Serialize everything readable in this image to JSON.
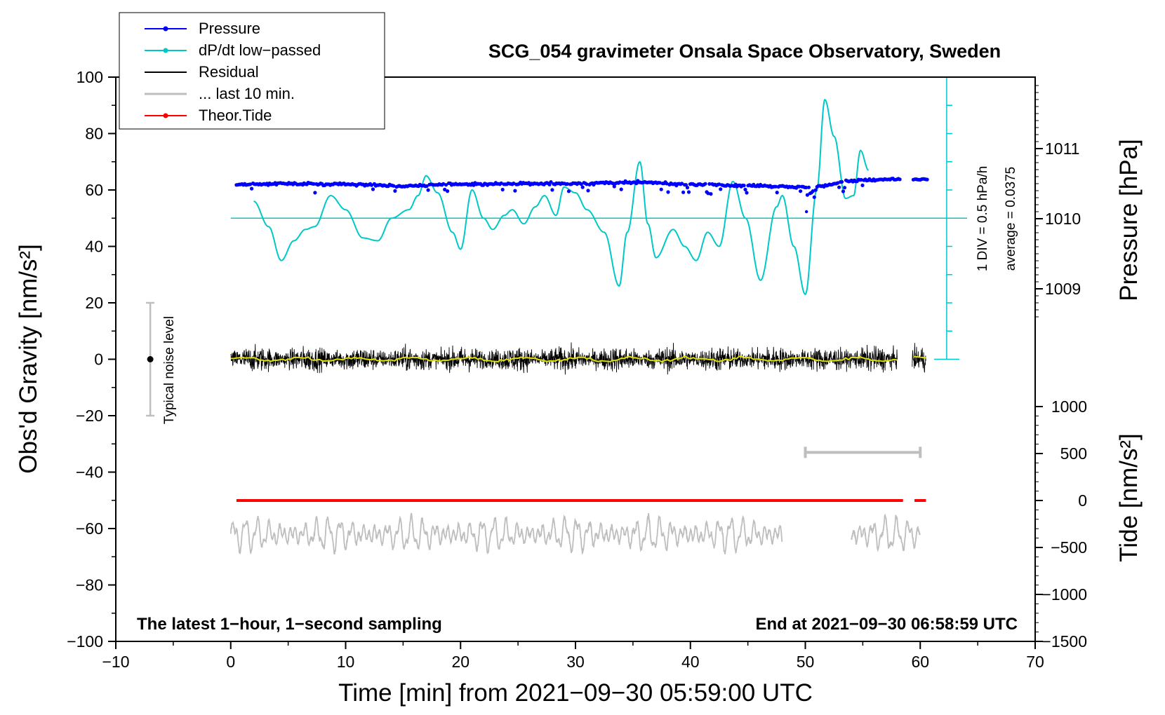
{
  "chart_data": {
    "type": "line",
    "title": "SCG_054 gravimeter Onsala Space Observatory, Sweden",
    "xlabel": "Time [min] from 2021−09−30 05:59:00 UTC",
    "ylabel_left": "Obs'd Gravity [nm/s²]",
    "ylabel_right_top": "Pressure [hPa]",
    "ylabel_right_bottom": "Tide [nm/s²]",
    "xlim": [
      -10,
      70
    ],
    "ylim": [
      -100,
      100
    ],
    "x_ticks": [
      "−10",
      "0",
      "10",
      "20",
      "30",
      "40",
      "50",
      "60",
      "70"
    ],
    "y_ticks": [
      "100",
      "80",
      "60",
      "40",
      "20",
      "0",
      "−20",
      "−40",
      "−60",
      "−80",
      "−100"
    ],
    "pressure_ticks": [
      1011,
      1010,
      1009
    ],
    "tide_ticks": [
      "1000",
      "500",
      "0",
      "−500",
      "−1000",
      "−1500"
    ],
    "bottom_left_note": "The latest 1−hour, 1−second sampling",
    "bottom_right_note": "End at 2021−09−30 06:58:59 UTC",
    "noise_label": "Typical noise level",
    "noise_bar": [
      -20,
      20
    ],
    "dpdt_scale": "1 DIV = 0.5 hPa/h",
    "dpdt_average": "average = 0.0375",
    "legend": [
      {
        "label": "Pressure",
        "color": "#0000ff",
        "marker": true
      },
      {
        "label": "dP/dt low−passed",
        "color": "#00c8c8",
        "marker": true
      },
      {
        "label": "Residual",
        "color": "#000000",
        "marker": false
      },
      {
        "label": "... last 10 min.",
        "color": "#bebebe",
        "marker": false
      },
      {
        "label": "Theor.Tide",
        "color": "#ff0000",
        "marker": true
      }
    ],
    "series": [
      {
        "name": "Pressure",
        "units": "hPa",
        "x": [
          0.5,
          5,
          10,
          15,
          20,
          25,
          30,
          35,
          40,
          45,
          50,
          55,
          58,
          60.5
        ],
        "y": [
          1010.49,
          1010.5,
          1010.49,
          1010.47,
          1010.49,
          1010.5,
          1010.5,
          1010.52,
          1010.49,
          1010.47,
          1010.45,
          1010.55,
          1010.57,
          1010.57
        ]
      },
      {
        "name": "dP/dt low−passed",
        "units": "gravity-axis",
        "x": [
          2,
          3.3,
          4.4,
          5.5,
          6.5,
          7.3,
          8.7,
          10,
          11.5,
          12.8,
          14,
          15.5,
          16.3,
          17,
          18,
          19.3,
          20,
          21,
          22,
          22.8,
          23.8,
          24.5,
          25.5,
          26.5,
          27.3,
          28.3,
          29,
          30,
          31,
          32.5,
          33.8,
          34.5,
          35.6,
          36.3,
          37,
          38.5,
          39.5,
          40.5,
          41.5,
          42.5,
          43.7,
          44.8,
          46.1,
          47.5,
          48,
          49,
          50,
          51,
          51.7,
          52.5,
          53.5,
          54.2,
          54.8,
          55.5
        ],
        "y": [
          56,
          47,
          35,
          42,
          46,
          47,
          58,
          53,
          43,
          42,
          50,
          53,
          58,
          65,
          59,
          45,
          39,
          60,
          50,
          46,
          51,
          53,
          48,
          54,
          58,
          51,
          61,
          59,
          53,
          45,
          26,
          45,
          70,
          48,
          36,
          46,
          40,
          35,
          45,
          40,
          63,
          50,
          28,
          54,
          58,
          40,
          23,
          60,
          92,
          79,
          57,
          58,
          74,
          67
        ]
      },
      {
        "name": "Residual",
        "units": "nm/s²",
        "x": [
          0,
          20,
          40,
          58,
          59.3,
          60.5
        ],
        "y": [
          0,
          0,
          0,
          0,
          0,
          0
        ],
        "envelope": 6,
        "gap": [
          58,
          59.3
        ]
      },
      {
        "name": "... last 10 min.",
        "units": "offset display",
        "x": [
          0,
          48,
          54,
          60
        ],
        "y": [
          -62,
          -62,
          -62,
          -62
        ],
        "gap": [
          48,
          54
        ]
      },
      {
        "name": "Theor.Tide",
        "units": "nm/s²",
        "x": [
          0.5,
          20,
          40,
          58.5,
          59.5,
          60.5
        ],
        "y": [
          0,
          0,
          0,
          0,
          0,
          0
        ],
        "gap": [
          58.5,
          59.5
        ]
      },
      {
        "name": "last 10 min. window",
        "x": [
          50,
          60
        ],
        "y": [
          -33,
          -33
        ]
      }
    ],
    "colors": {
      "pressure": "#0000ff",
      "dpdt": "#00c8c8",
      "residual": "#000000",
      "residual_smooth": "#e0e000",
      "last10": "#bebebe",
      "tide": "#ff0000"
    }
  }
}
